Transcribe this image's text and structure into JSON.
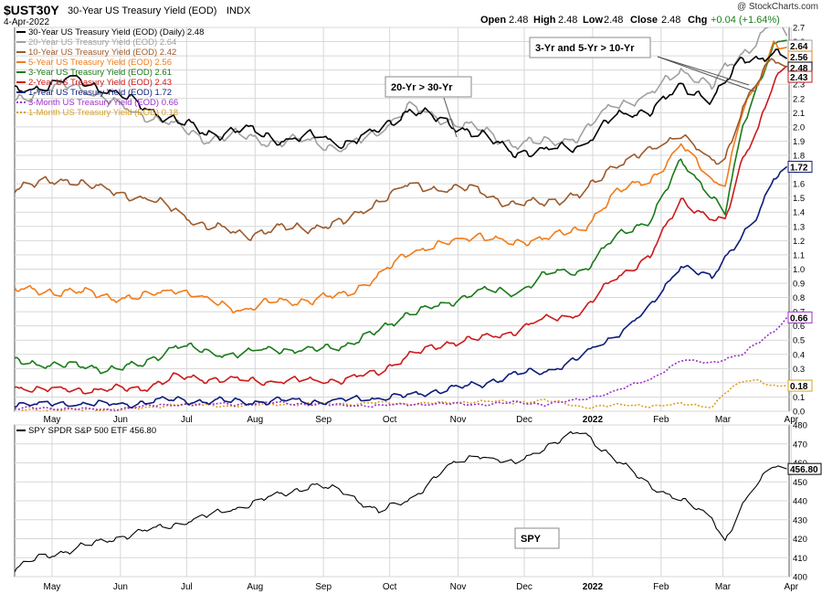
{
  "header": {
    "symbol": "$UST30Y",
    "name": "30-Year US Treasury Yield (EOD)",
    "exchange": "INDX",
    "date": "4-Apr-2022",
    "brand": "@ StockCharts.com",
    "quote": {
      "open_label": "Open",
      "open": "2.48",
      "high_label": "High",
      "high": "2.48",
      "low_label": "Low",
      "low": "2.48",
      "close_label": "Close",
      "close": "2.48",
      "chg_label": "Chg",
      "chg": "+0.04 (+1.64%)",
      "chg_color": "#1a7f1a"
    }
  },
  "annotations": [
    {
      "text": "20-Yr > 30-Yr"
    },
    {
      "text": "3-Yr and 5-Yr > 10-Yr"
    },
    {
      "text": "SPY"
    }
  ],
  "chart_data": [
    {
      "type": "line",
      "title": "$UST30Y 30-Year US Treasury Yield (EOD)",
      "x_ticks": [
        "May",
        "Jun",
        "Jul",
        "Aug",
        "Sep",
        "Oct",
        "Nov",
        "Dec",
        "2022",
        "Feb",
        "Mar",
        "Apr"
      ],
      "ylim": [
        0,
        2.7
      ],
      "y_ticks": [
        "0.0",
        "0.1",
        "0.2",
        "0.3",
        "0.4",
        "0.5",
        "0.6",
        "0.7",
        "0.8",
        "0.9",
        "1.0",
        "1.1",
        "1.2",
        "1.3",
        "1.4",
        "1.5",
        "1.6",
        "1.7",
        "1.8",
        "1.9",
        "2.0",
        "2.1",
        "2.2",
        "2.3",
        "2.4",
        "2.5",
        "2.6",
        "2.7"
      ],
      "grid": true,
      "legend_position": "top-left",
      "x_dates": [
        "2021-04-19",
        "2021-05-01",
        "2021-05-15",
        "2021-06-01",
        "2021-06-15",
        "2021-07-01",
        "2021-07-15",
        "2021-08-01",
        "2021-08-15",
        "2021-09-01",
        "2021-09-15",
        "2021-10-01",
        "2021-10-15",
        "2021-11-01",
        "2021-11-15",
        "2021-12-01",
        "2021-12-15",
        "2022-01-01",
        "2022-01-15",
        "2022-02-01",
        "2022-02-15",
        "2022-03-01",
        "2022-03-07",
        "2022-03-15",
        "2022-03-22",
        "2022-03-29",
        "2022-04-04"
      ],
      "series": [
        {
          "name": "30-Year US Treasury Yield (EOD) (Daily)",
          "last": "2.48",
          "color": "#000000",
          "dash": false,
          "values": [
            2.24,
            2.28,
            2.35,
            2.25,
            2.15,
            2.05,
            1.95,
            1.98,
            1.92,
            1.93,
            1.88,
            1.98,
            2.12,
            2.03,
            1.95,
            1.83,
            1.82,
            1.88,
            2.06,
            2.12,
            2.28,
            2.2,
            2.31,
            2.47,
            2.48,
            2.53,
            2.48
          ]
        },
        {
          "name": "20-Year US Treasury Yield (EOD)",
          "last": "2.64",
          "color": "#a0a0a0",
          "dash": false,
          "values": [
            2.2,
            2.25,
            2.3,
            2.18,
            2.1,
            2.0,
            1.92,
            1.94,
            1.89,
            1.9,
            1.85,
            1.96,
            2.14,
            2.05,
            1.98,
            1.88,
            1.89,
            1.94,
            2.15,
            2.23,
            2.4,
            2.28,
            2.41,
            2.52,
            2.62,
            2.75,
            2.64
          ]
        },
        {
          "name": "10-Year US Treasury Yield (EOD)",
          "last": "2.42",
          "color": "#9c5a2c",
          "dash": false,
          "values": [
            1.58,
            1.6,
            1.63,
            1.55,
            1.5,
            1.42,
            1.3,
            1.24,
            1.28,
            1.3,
            1.32,
            1.48,
            1.6,
            1.55,
            1.57,
            1.44,
            1.48,
            1.51,
            1.74,
            1.82,
            1.96,
            1.75,
            1.78,
            2.14,
            2.32,
            2.48,
            2.42
          ]
        },
        {
          "name": "5-Year US Treasury Yield (EOD)",
          "last": "2.56",
          "color": "#f07c1a",
          "dash": false,
          "values": [
            0.86,
            0.84,
            0.85,
            0.8,
            0.8,
            0.87,
            0.77,
            0.72,
            0.77,
            0.78,
            0.82,
            0.95,
            1.12,
            1.18,
            1.25,
            1.16,
            1.24,
            1.26,
            1.53,
            1.62,
            1.88,
            1.62,
            1.6,
            2.12,
            2.3,
            2.6,
            2.56
          ]
        },
        {
          "name": "3-Year US Treasury Yield (EOD)",
          "last": "2.61",
          "color": "#1a7a1a",
          "dash": false,
          "values": [
            0.35,
            0.33,
            0.32,
            0.3,
            0.32,
            0.46,
            0.42,
            0.4,
            0.44,
            0.43,
            0.46,
            0.56,
            0.7,
            0.75,
            0.85,
            0.83,
            0.96,
            0.98,
            1.21,
            1.35,
            1.75,
            1.52,
            1.4,
            2.0,
            2.3,
            2.58,
            2.61
          ]
        },
        {
          "name": "2-Year US Treasury Yield (EOD)",
          "last": "2.43",
          "color": "#cc1a1a",
          "dash": false,
          "values": [
            0.16,
            0.16,
            0.15,
            0.15,
            0.16,
            0.24,
            0.23,
            0.21,
            0.22,
            0.21,
            0.22,
            0.28,
            0.39,
            0.48,
            0.51,
            0.56,
            0.64,
            0.7,
            0.92,
            1.09,
            1.49,
            1.35,
            1.33,
            1.78,
            2.0,
            2.31,
            2.43
          ]
        },
        {
          "name": "1-Year US Treasury Yield (EOD)",
          "last": "1.72",
          "color": "#0e1c7a",
          "dash": false,
          "values": [
            0.06,
            0.05,
            0.05,
            0.05,
            0.06,
            0.08,
            0.07,
            0.07,
            0.07,
            0.07,
            0.08,
            0.09,
            0.11,
            0.16,
            0.18,
            0.26,
            0.28,
            0.38,
            0.52,
            0.73,
            1.03,
            0.93,
            1.08,
            1.25,
            1.38,
            1.63,
            1.72
          ]
        },
        {
          "name": "3-Month US Treasury Yield (EOD)",
          "last": "0.66",
          "color": "#9b30c8",
          "dash": true,
          "values": [
            0.02,
            0.02,
            0.02,
            0.01,
            0.03,
            0.05,
            0.05,
            0.05,
            0.06,
            0.05,
            0.04,
            0.04,
            0.05,
            0.05,
            0.05,
            0.06,
            0.05,
            0.08,
            0.14,
            0.22,
            0.36,
            0.34,
            0.37,
            0.4,
            0.48,
            0.56,
            0.66
          ]
        },
        {
          "name": "1-Month US Treasury Yield (EOD)",
          "last": "0.18",
          "color": "#d9a021",
          "dash": true,
          "values": [
            0.01,
            0.01,
            0.01,
            0.01,
            0.02,
            0.05,
            0.04,
            0.04,
            0.05,
            0.05,
            0.05,
            0.06,
            0.05,
            0.06,
            0.07,
            0.06,
            0.08,
            0.03,
            0.04,
            0.04,
            0.05,
            0.03,
            0.13,
            0.21,
            0.22,
            0.18,
            0.18
          ]
        }
      ]
    },
    {
      "type": "line",
      "title": "SPY SPDR S&P 500 ETF 456.80",
      "x_ticks": [
        "May",
        "Jun",
        "Jul",
        "Aug",
        "Sep",
        "Oct",
        "Nov",
        "Dec",
        "2022",
        "Feb",
        "Mar",
        "Apr"
      ],
      "ylim": [
        400,
        480
      ],
      "y_ticks": [
        "400",
        "410",
        "420",
        "430",
        "440",
        "450",
        "460",
        "470",
        "480"
      ],
      "grid": true,
      "x_dates": [
        "2021-04-19",
        "2021-05-01",
        "2021-05-15",
        "2021-06-01",
        "2021-06-15",
        "2021-07-01",
        "2021-07-15",
        "2021-08-01",
        "2021-08-15",
        "2021-09-01",
        "2021-09-15",
        "2021-10-01",
        "2021-10-15",
        "2021-11-01",
        "2021-11-15",
        "2021-12-01",
        "2021-12-15",
        "2022-01-01",
        "2022-01-15",
        "2022-02-01",
        "2022-02-15",
        "2022-03-01",
        "2022-03-07",
        "2022-03-15",
        "2022-03-22",
        "2022-03-29",
        "2022-04-04"
      ],
      "series": [
        {
          "name": "SPDR S&P 500 ETF",
          "last": "456.80",
          "color": "#000000",
          "values": [
            403,
            411,
            414,
            420,
            423,
            428,
            432,
            437,
            443,
            448,
            445,
            434,
            441,
            457,
            465,
            459,
            468,
            477,
            463,
            448,
            440,
            432,
            419,
            437,
            449,
            460,
            456.8
          ]
        }
      ]
    }
  ]
}
